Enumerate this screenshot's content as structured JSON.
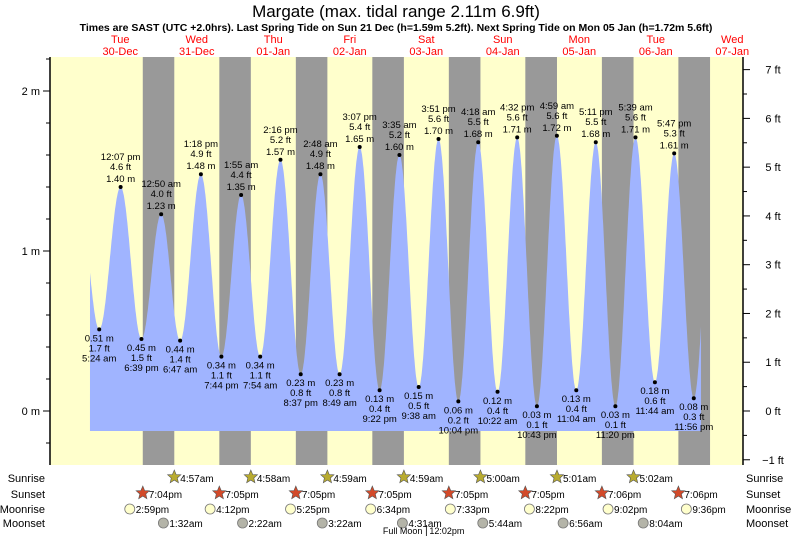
{
  "chart_data": {
    "type": "area",
    "title": "Margate (max. tidal range 2.11m 6.9ft)",
    "subtitle": "Times are SAST (UTC +2.0hrs). Last Spring Tide on Sun 21 Dec (h=1.59m 5.2ft). Next Spring Tide on Mon 05 Jan (h=1.72m 5.6ft)",
    "days": [
      {
        "dow": "Tue",
        "date": "30-Dec"
      },
      {
        "dow": "Wed",
        "date": "31-Dec"
      },
      {
        "dow": "Thu",
        "date": "01-Jan"
      },
      {
        "dow": "Fri",
        "date": "02-Jan"
      },
      {
        "dow": "Sat",
        "date": "03-Jan"
      },
      {
        "dow": "Sun",
        "date": "04-Jan"
      },
      {
        "dow": "Mon",
        "date": "05-Jan"
      },
      {
        "dow": "Tue",
        "date": "06-Jan"
      },
      {
        "dow": "Wed",
        "date": "07-Jan"
      }
    ],
    "y_left": {
      "unit": "m",
      "ticks": [
        "0 m",
        "1 m",
        "2 m"
      ],
      "tick_values": [
        0,
        1,
        2
      ],
      "range": [
        -0.33,
        2.2
      ]
    },
    "y_right": {
      "unit": "ft",
      "ticks": [
        "−1 ft",
        "0 ft",
        "1 ft",
        "2 ft",
        "3 ft",
        "4 ft",
        "5 ft",
        "6 ft",
        "7 ft"
      ],
      "tick_values": [
        -1,
        0,
        1,
        2,
        3,
        4,
        5,
        6,
        7
      ]
    },
    "tides": [
      {
        "type": "low",
        "day": 0,
        "time": "5:24 am",
        "m": 0.51,
        "m_label": "0.51 m",
        "ft_label": "1.7 ft"
      },
      {
        "type": "high",
        "day": 0,
        "time": "12:07 pm",
        "m": 1.4,
        "m_label": "1.40 m",
        "ft_label": "4.6 ft"
      },
      {
        "type": "low",
        "day": 0,
        "time": "6:39 pm",
        "m": 0.45,
        "m_label": "0.45 m",
        "ft_label": "1.5 ft"
      },
      {
        "type": "high",
        "day": 1,
        "time": "12:50 am",
        "m": 1.23,
        "m_label": "1.23 m",
        "ft_label": "4.0 ft"
      },
      {
        "type": "low",
        "day": 1,
        "time": "6:47 am",
        "m": 0.44,
        "m_label": "0.44 m",
        "ft_label": "1.4 ft"
      },
      {
        "type": "high",
        "day": 1,
        "time": "1:18 pm",
        "m": 1.48,
        "m_label": "1.48 m",
        "ft_label": "4.9 ft"
      },
      {
        "type": "low",
        "day": 1,
        "time": "7:44 pm",
        "m": 0.34,
        "m_label": "0.34 m",
        "ft_label": "1.1 ft"
      },
      {
        "type": "high",
        "day": 2,
        "time": "1:55 am",
        "m": 1.35,
        "m_label": "1.35 m",
        "ft_label": "4.4 ft"
      },
      {
        "type": "low",
        "day": 2,
        "time": "7:54 am",
        "m": 0.34,
        "m_label": "0.34 m",
        "ft_label": "1.1 ft"
      },
      {
        "type": "high",
        "day": 2,
        "time": "2:16 pm",
        "m": 1.57,
        "m_label": "1.57 m",
        "ft_label": "5.2 ft"
      },
      {
        "type": "low",
        "day": 2,
        "time": "8:37 pm",
        "m": 0.23,
        "m_label": "0.23 m",
        "ft_label": "0.8 ft"
      },
      {
        "type": "high",
        "day": 3,
        "time": "2:48 am",
        "m": 1.48,
        "m_label": "1.48 m",
        "ft_label": "4.9 ft"
      },
      {
        "type": "low",
        "day": 3,
        "time": "8:49 am",
        "m": 0.23,
        "m_label": "0.23 m",
        "ft_label": "0.8 ft"
      },
      {
        "type": "high",
        "day": 3,
        "time": "3:07 pm",
        "m": 1.65,
        "m_label": "1.65 m",
        "ft_label": "5.4 ft"
      },
      {
        "type": "low",
        "day": 3,
        "time": "9:22 pm",
        "m": 0.13,
        "m_label": "0.13 m",
        "ft_label": "0.4 ft"
      },
      {
        "type": "high",
        "day": 4,
        "time": "3:35 am",
        "m": 1.6,
        "m_label": "1.60 m",
        "ft_label": "5.2 ft"
      },
      {
        "type": "low",
        "day": 4,
        "time": "9:38 am",
        "m": 0.15,
        "m_label": "0.15 m",
        "ft_label": "0.5 ft"
      },
      {
        "type": "high",
        "day": 4,
        "time": "3:51 pm",
        "m": 1.7,
        "m_label": "1.70 m",
        "ft_label": "5.6 ft"
      },
      {
        "type": "low",
        "day": 4,
        "time": "10:04 pm",
        "m": 0.06,
        "m_label": "0.06 m",
        "ft_label": "0.2 ft"
      },
      {
        "type": "high",
        "day": 5,
        "time": "4:18 am",
        "m": 1.68,
        "m_label": "1.68 m",
        "ft_label": "5.5 ft"
      },
      {
        "type": "low",
        "day": 5,
        "time": "10:22 am",
        "m": 0.12,
        "m_label": "0.12 m",
        "ft_label": "0.4 ft"
      },
      {
        "type": "high",
        "day": 5,
        "time": "4:32 pm",
        "m": 1.71,
        "m_label": "1.71 m",
        "ft_label": "5.6 ft"
      },
      {
        "type": "low",
        "day": 5,
        "time": "10:43 pm",
        "m": 0.03,
        "m_label": "0.03 m",
        "ft_label": "0.1 ft"
      },
      {
        "type": "high",
        "day": 6,
        "time": "4:59 am",
        "m": 1.72,
        "m_label": "1.72 m",
        "ft_label": "5.6 ft"
      },
      {
        "type": "low",
        "day": 6,
        "time": "11:04 am",
        "m": 0.13,
        "m_label": "0.13 m",
        "ft_label": "0.4 ft"
      },
      {
        "type": "high",
        "day": 6,
        "time": "5:11 pm",
        "m": 1.68,
        "m_label": "1.68 m",
        "ft_label": "5.5 ft"
      },
      {
        "type": "low",
        "day": 6,
        "time": "11:20 pm",
        "m": 0.03,
        "m_label": "0.03 m",
        "ft_label": "0.1 ft"
      },
      {
        "type": "high",
        "day": 7,
        "time": "5:39 am",
        "m": 1.71,
        "m_label": "1.71 m",
        "ft_label": "5.6 ft"
      },
      {
        "type": "low",
        "day": 7,
        "time": "11:44 am",
        "m": 0.18,
        "m_label": "0.18 m",
        "ft_label": "0.6 ft"
      },
      {
        "type": "high",
        "day": 7,
        "time": "5:47 pm",
        "m": 1.61,
        "m_label": "1.61 m",
        "ft_label": "5.3 ft"
      },
      {
        "type": "low",
        "day": 7,
        "time": "11:56 pm",
        "m": 0.08,
        "m_label": "0.08 m",
        "ft_label": "0.3 ft"
      }
    ],
    "sun_moon": {
      "labels": {
        "sunrise": "Sunrise",
        "sunset": "Sunset",
        "moonrise": "Moonrise",
        "moonset": "Moonset"
      },
      "sunrise": [
        {
          "day": 1,
          "time": "4:57am"
        },
        {
          "day": 2,
          "time": "4:58am"
        },
        {
          "day": 3,
          "time": "4:59am"
        },
        {
          "day": 4,
          "time": "4:59am"
        },
        {
          "day": 5,
          "time": "5:00am"
        },
        {
          "day": 6,
          "time": "5:01am"
        },
        {
          "day": 7,
          "time": "5:02am"
        }
      ],
      "sunset": [
        {
          "day": 0,
          "time": "7:04pm"
        },
        {
          "day": 1,
          "time": "7:05pm"
        },
        {
          "day": 2,
          "time": "7:05pm"
        },
        {
          "day": 3,
          "time": "7:05pm"
        },
        {
          "day": 4,
          "time": "7:05pm"
        },
        {
          "day": 5,
          "time": "7:05pm"
        },
        {
          "day": 6,
          "time": "7:06pm"
        },
        {
          "day": 7,
          "time": "7:06pm"
        }
      ],
      "moonrise": [
        {
          "day": 0,
          "time": "2:59pm"
        },
        {
          "day": 1,
          "time": "4:12pm"
        },
        {
          "day": 2,
          "time": "5:25pm"
        },
        {
          "day": 3,
          "time": "6:34pm"
        },
        {
          "day": 4,
          "time": "7:33pm"
        },
        {
          "day": 5,
          "time": "8:22pm"
        },
        {
          "day": 6,
          "time": "9:02pm"
        },
        {
          "day": 7,
          "time": "9:36pm"
        }
      ],
      "moonset": [
        {
          "day": 1,
          "time": "1:32am"
        },
        {
          "day": 2,
          "time": "2:22am"
        },
        {
          "day": 3,
          "time": "3:22am"
        },
        {
          "day": 4,
          "time": "4:31am"
        },
        {
          "day": 5,
          "time": "5:44am"
        },
        {
          "day": 6,
          "time": "6:56am"
        },
        {
          "day": 7,
          "time": "8:04am"
        }
      ],
      "moon_phase": {
        "label": "Full Moon",
        "day": 4,
        "time": "12:02pm"
      }
    },
    "colors": {
      "day": "#ffffcc",
      "night": "#999999",
      "tide": "#a0b4ff",
      "date": "#ff0000",
      "sunrise": "#b8ab30",
      "sunset": "#d24a2a",
      "moonrise": "#ffffcc",
      "moonset": "#b4b4a8"
    }
  }
}
